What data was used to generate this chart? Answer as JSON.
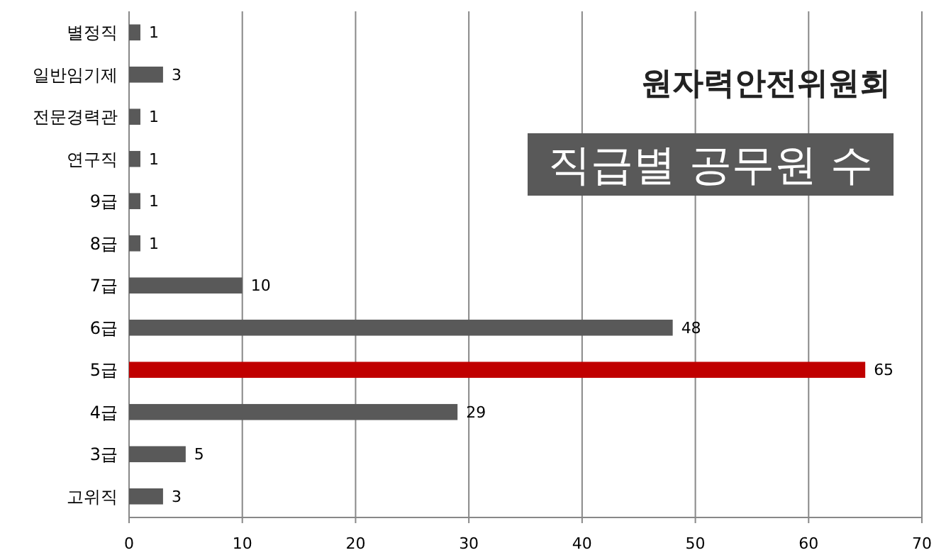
{
  "chart_data": {
    "type": "bar",
    "orientation": "horizontal",
    "title": "직급별 공무원 수",
    "annotations": [
      "원자력안전위원회"
    ],
    "categories": [
      "별정직",
      "일반임기제",
      "전문경력관",
      "연구직",
      "9급",
      "8급",
      "7급",
      "6급",
      "5급",
      "4급",
      "3급",
      "고위직"
    ],
    "values": [
      1,
      3,
      1,
      1,
      1,
      1,
      10,
      48,
      65,
      29,
      5,
      3
    ],
    "colors": [
      "#595959",
      "#595959",
      "#595959",
      "#595959",
      "#595959",
      "#595959",
      "#595959",
      "#595959",
      "#c00000",
      "#595959",
      "#595959",
      "#595959"
    ],
    "xlim": [
      0,
      70
    ],
    "xticks": [
      0,
      10,
      20,
      30,
      40,
      50,
      60,
      70
    ],
    "grid": "x",
    "data_labels": true
  }
}
